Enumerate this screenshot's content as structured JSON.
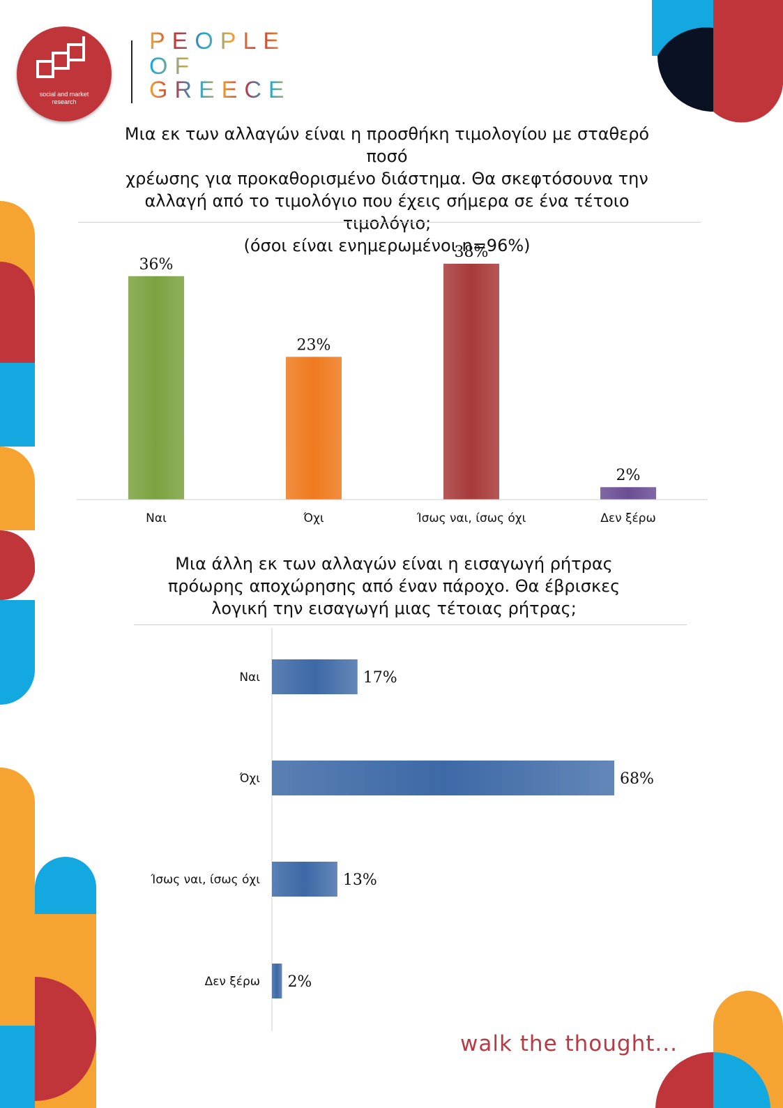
{
  "header": {
    "logo_caption_line1": "social and market",
    "logo_caption_line2": "research",
    "brand_lines": [
      "PEOPLE",
      "OF",
      "GREECE"
    ]
  },
  "colors": {
    "red": "#c0353a",
    "orange": "#f5a431",
    "blue": "#13a8e0",
    "navy": "#0a1122",
    "bar_green": "#7ba23f",
    "bar_orange": "#ef7a1e",
    "bar_darkred": "#a83a3a",
    "bar_purple": "#6a4e94",
    "bar_blue": "#3d69a6"
  },
  "chart_data": [
    {
      "type": "bar",
      "title": "Μια εκ των αλλαγών είναι η προσθήκη τιμολογίου με σταθερό ποσό χρέωσης για προκαθορισμένο διάστημα. Θα σκεφτόσουνα την αλλαγή από το τιμολόγιο που έχεις σήμερα σε ένα τέτοιο τιμολόγιο;",
      "subtitle": "(όσοι είναι ενημερωμένοι n=96%)",
      "categories": [
        "Ναι",
        "Όχι",
        "Ίσως ναι, ίσως όχι",
        "Δεν ξέρω"
      ],
      "values": [
        36,
        23,
        38,
        2
      ],
      "labels": [
        "36%",
        "23%",
        "38%",
        "2%"
      ],
      "colors": [
        "#7ba23f",
        "#ef7a1e",
        "#a83a3a",
        "#6a4e94"
      ],
      "ylim": [
        0,
        38
      ],
      "grid": false
    },
    {
      "type": "bar",
      "orientation": "horizontal",
      "title": "Μια άλλη εκ των αλλαγών είναι η εισαγωγή ρήτρας πρόωρης αποχώρησης από έναν πάροχο. Θα έβρισκες λογική την εισαγωγή μιας τέτοιας ρήτρας;",
      "categories": [
        "Ναι",
        "Όχι",
        "Ίσως ναι, ίσως όχι",
        "Δεν ξέρω"
      ],
      "values": [
        17,
        68,
        13,
        2
      ],
      "labels": [
        "17%",
        "68%",
        "13%",
        "2%"
      ],
      "color": "#3d69a6",
      "xlim": [
        0,
        68
      ],
      "grid": false
    }
  ],
  "titles": {
    "chart1_line1": "Μια εκ των αλλαγών είναι η προσθήκη τιμολογίου με σταθερό ποσό",
    "chart1_line2": "χρέωσης για προκαθορισμένο διάστημα. Θα σκεφτόσουνα την",
    "chart1_line3": "αλλαγή από το τιμολόγιο που έχεις σήμερα σε ένα τέτοιο τιμολόγιο;",
    "chart1_line4": "(όσοι είναι ενημερωμένοι n=96%)",
    "chart2_line1": "Μια άλλη εκ των αλλαγών είναι η εισαγωγή ρήτρας",
    "chart2_line2": "πρόωρης αποχώρησης από έναν πάροχο. Θα έβρισκες",
    "chart2_line3": "λογική την εισαγωγή μιας τέτοιας ρήτρας;"
  },
  "footer": {
    "tagline": "walk the thought..."
  }
}
